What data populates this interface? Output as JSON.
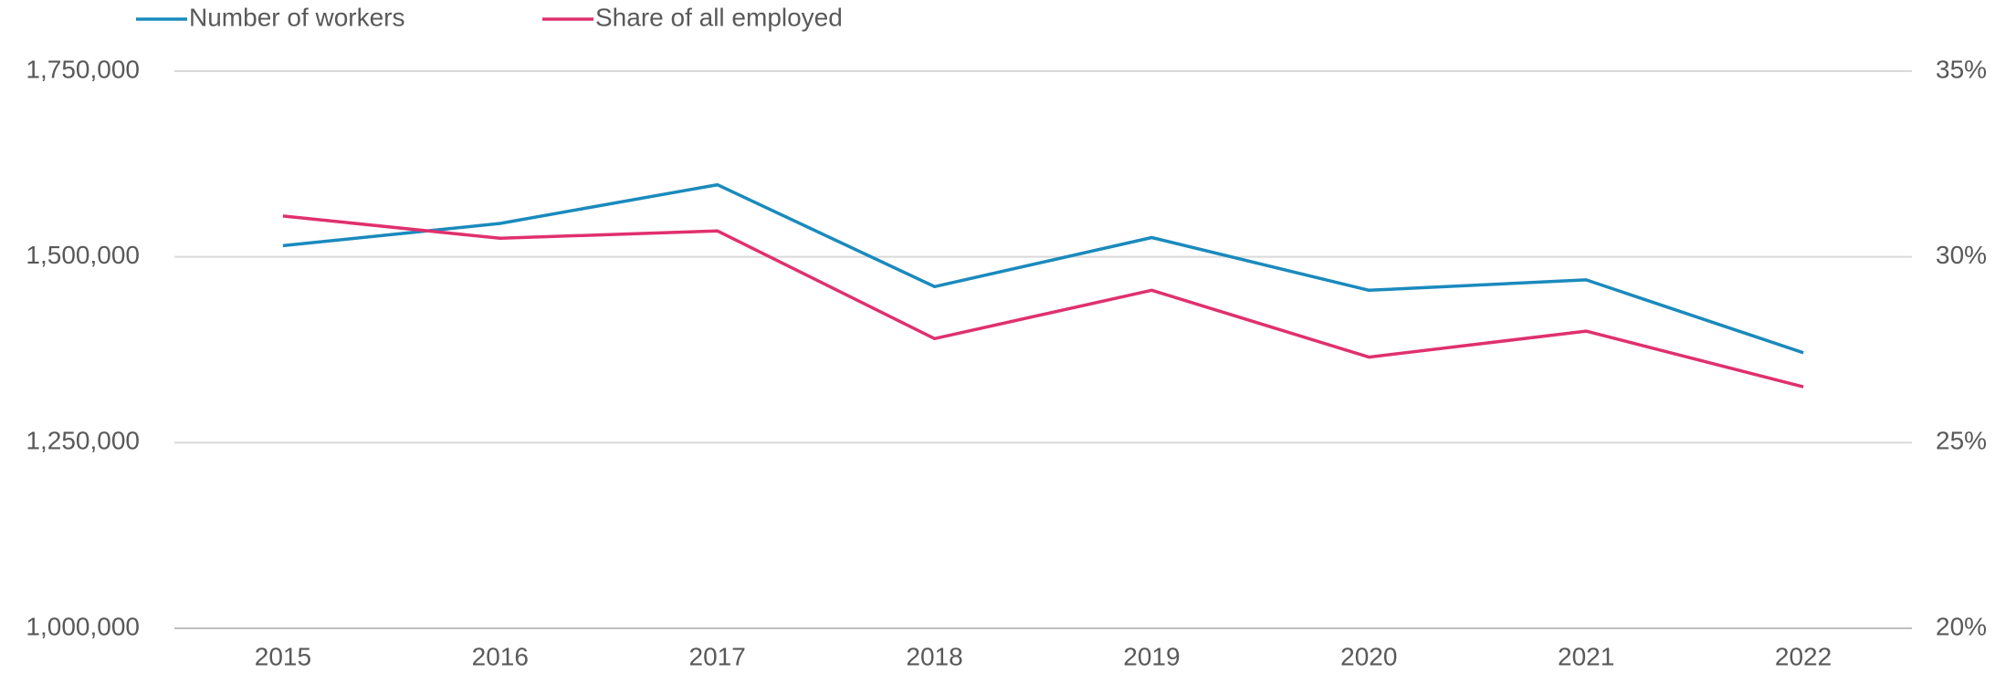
{
  "chart_data": {
    "type": "line",
    "categories": [
      "2015",
      "2016",
      "2017",
      "2018",
      "2019",
      "2020",
      "2021",
      "2022"
    ],
    "series": [
      {
        "name": "Number of workers",
        "color": "#1a8abd",
        "values": [
          1515000,
          1545000,
          1597000,
          1460000,
          1526000,
          1455000,
          1469000,
          1371000
        ]
      },
      {
        "name": "Share of all employed",
        "color": "#e0306e",
        "axis": "y2",
        "values": [
          31.1,
          30.5,
          30.7,
          27.8,
          29.1,
          27.3,
          28.0,
          26.5
        ]
      }
    ],
    "ylim": [
      1000000,
      1750000
    ],
    "yticks": [
      {
        "value": 1000000,
        "label": "1,000,000"
      },
      {
        "value": 1250000,
        "label": "1,250,000"
      },
      {
        "value": 1500000,
        "label": "1,500,000"
      },
      {
        "value": 1750000,
        "label": "1,750,000"
      }
    ],
    "y2lim": [
      20,
      35
    ],
    "y2ticks": [
      {
        "value": 20,
        "label": "20%"
      },
      {
        "value": 25,
        "label": "25%"
      },
      {
        "value": 30,
        "label": "30%"
      },
      {
        "value": 35,
        "label": "35%"
      }
    ],
    "grid": true,
    "legend": "top-left"
  }
}
